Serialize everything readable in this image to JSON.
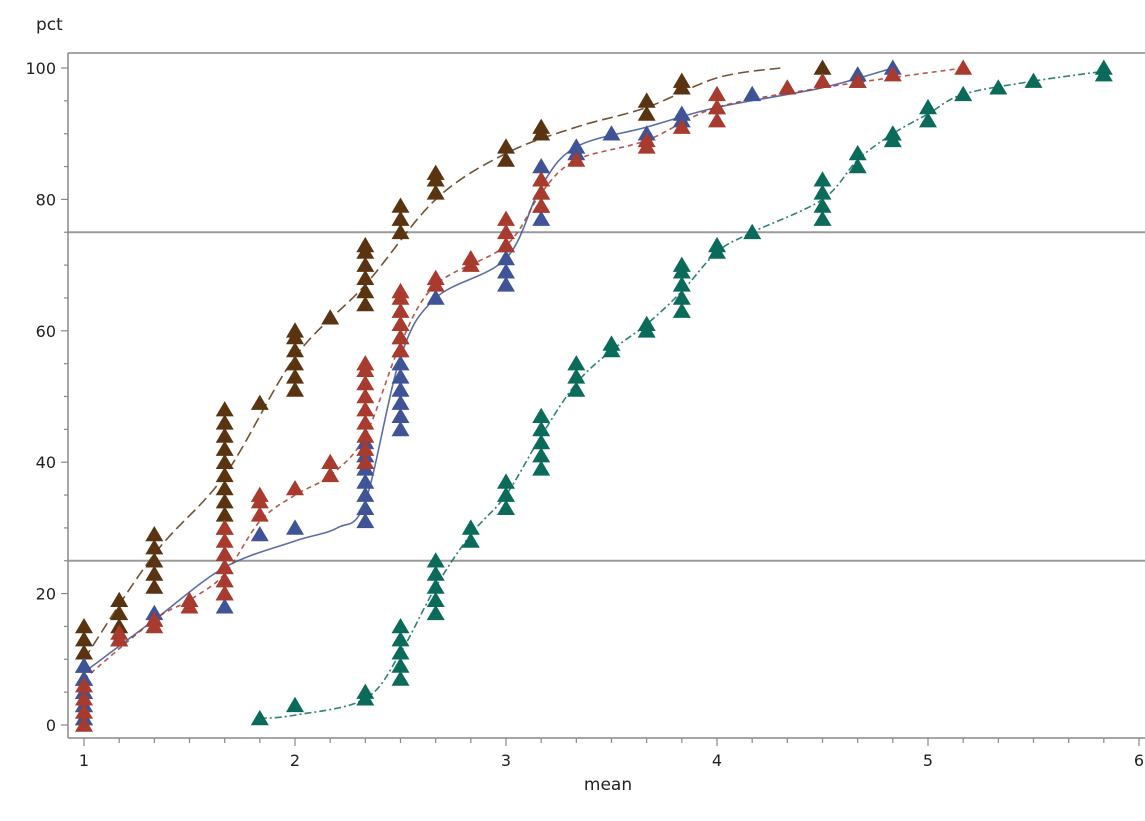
{
  "chart_data": {
    "type": "scatter",
    "title": "",
    "xlabel": "mean",
    "ylabel": "pct",
    "xlim": [
      1,
      6
    ],
    "ylim": [
      0,
      100
    ],
    "xticks": [
      "1",
      "2",
      "3",
      "4",
      "5",
      "6"
    ],
    "yticks": [
      "0",
      "20",
      "40",
      "60",
      "80",
      "100"
    ],
    "reference_lines_y": [
      25,
      75
    ],
    "grid": false,
    "legend": "none",
    "colors": {
      "axis": "#888888",
      "refline": "#9a9a9a",
      "brown": "#5a3410",
      "blue": "#3e5497",
      "red": "#a83a2e",
      "teal": "#0b6b5a"
    },
    "series": [
      {
        "color": "brown",
        "marker": "triangle",
        "line": "long-dash",
        "points": [
          {
            "x": 1,
            "y": [
              1,
              3,
              5,
              7,
              9,
              11,
              13,
              15
            ]
          },
          {
            "x": 1.167,
            "y": [
              15,
              17,
              19
            ]
          },
          {
            "x": 1.333,
            "y": [
              21,
              23,
              25,
              27,
              29
            ]
          },
          {
            "x": 1.667,
            "y": [
              30,
              32,
              34,
              36,
              38,
              40,
              42,
              44,
              46,
              48
            ]
          },
          {
            "x": 1.833,
            "y": [
              49
            ]
          },
          {
            "x": 2,
            "y": [
              51,
              53,
              55,
              57,
              59,
              60
            ]
          },
          {
            "x": 2.167,
            "y": [
              62
            ]
          },
          {
            "x": 2.333,
            "y": [
              64,
              66,
              68,
              70,
              72,
              73
            ]
          },
          {
            "x": 2.5,
            "y": [
              75,
              77,
              79
            ]
          },
          {
            "x": 2.667,
            "y": [
              81,
              83,
              84
            ]
          },
          {
            "x": 3,
            "y": [
              86,
              88
            ]
          },
          {
            "x": 3.167,
            "y": [
              90,
              91
            ]
          },
          {
            "x": 3.667,
            "y": [
              93,
              95
            ]
          },
          {
            "x": 3.833,
            "y": [
              97,
              98
            ]
          },
          {
            "x": 4.5,
            "y": [
              100
            ]
          }
        ],
        "curve": [
          [
            1,
            10
          ],
          [
            1.333,
            26
          ],
          [
            1.667,
            38
          ],
          [
            2,
            56
          ],
          [
            2.333,
            67
          ],
          [
            2.667,
            80
          ],
          [
            3,
            87
          ],
          [
            3.333,
            91
          ],
          [
            3.667,
            94
          ],
          [
            4,
            98.5
          ],
          [
            4.3,
            100
          ]
        ]
      },
      {
        "color": "blue",
        "marker": "triangle",
        "line": "solid",
        "points": [
          {
            "x": 1,
            "y": [
              1,
              3,
              5,
              7,
              9
            ]
          },
          {
            "x": 1.167,
            "y": [
              13
            ]
          },
          {
            "x": 1.333,
            "y": [
              16,
              17
            ]
          },
          {
            "x": 1.667,
            "y": [
              18,
              20,
              22,
              24,
              26
            ]
          },
          {
            "x": 1.833,
            "y": [
              29
            ]
          },
          {
            "x": 2,
            "y": [
              30
            ]
          },
          {
            "x": 2.333,
            "y": [
              31,
              33,
              35,
              37,
              39,
              41,
              43
            ]
          },
          {
            "x": 2.5,
            "y": [
              45,
              47,
              49,
              51,
              53,
              55,
              57,
              59,
              61
            ]
          },
          {
            "x": 2.667,
            "y": [
              65
            ]
          },
          {
            "x": 3,
            "y": [
              67,
              69,
              71,
              73
            ]
          },
          {
            "x": 3.167,
            "y": [
              77,
              79,
              81,
              83,
              85
            ]
          },
          {
            "x": 3.333,
            "y": [
              87,
              88
            ]
          },
          {
            "x": 3.5,
            "y": [
              90
            ]
          },
          {
            "x": 3.667,
            "y": [
              90
            ]
          },
          {
            "x": 3.833,
            "y": [
              92,
              93
            ]
          },
          {
            "x": 4,
            "y": [
              94
            ]
          },
          {
            "x": 4.167,
            "y": [
              96
            ]
          },
          {
            "x": 4.667,
            "y": [
              98,
              99
            ]
          },
          {
            "x": 4.833,
            "y": [
              100
            ]
          }
        ],
        "curve": [
          [
            1,
            8
          ],
          [
            1.333,
            16
          ],
          [
            1.667,
            24
          ],
          [
            2,
            28
          ],
          [
            2.2,
            30
          ],
          [
            2.333,
            34
          ],
          [
            2.5,
            56
          ],
          [
            2.667,
            65
          ],
          [
            3,
            71
          ],
          [
            3.167,
            82
          ],
          [
            3.333,
            88
          ],
          [
            3.667,
            91
          ],
          [
            4,
            94
          ],
          [
            4.5,
            97
          ],
          [
            4.833,
            100
          ]
        ]
      },
      {
        "color": "red",
        "marker": "triangle",
        "line": "short-dash",
        "points": [
          {
            "x": 1,
            "y": [
              0,
              2,
              4,
              6
            ]
          },
          {
            "x": 1.167,
            "y": [
              13,
              14
            ]
          },
          {
            "x": 1.333,
            "y": [
              15,
              16
            ]
          },
          {
            "x": 1.5,
            "y": [
              18,
              19
            ]
          },
          {
            "x": 1.667,
            "y": [
              20,
              22,
              24,
              26,
              28,
              30
            ]
          },
          {
            "x": 1.833,
            "y": [
              32,
              34,
              35
            ]
          },
          {
            "x": 2,
            "y": [
              36
            ]
          },
          {
            "x": 2.167,
            "y": [
              38,
              40
            ]
          },
          {
            "x": 2.333,
            "y": [
              40,
              42,
              44,
              46,
              48,
              50,
              52,
              54,
              55
            ]
          },
          {
            "x": 2.5,
            "y": [
              57,
              59,
              61,
              63,
              65,
              66
            ]
          },
          {
            "x": 2.667,
            "y": [
              67,
              68
            ]
          },
          {
            "x": 2.833,
            "y": [
              70,
              71
            ]
          },
          {
            "x": 3,
            "y": [
              73,
              75,
              77
            ]
          },
          {
            "x": 3.167,
            "y": [
              79,
              81,
              83
            ]
          },
          {
            "x": 3.333,
            "y": [
              86
            ]
          },
          {
            "x": 3.667,
            "y": [
              88,
              89
            ]
          },
          {
            "x": 3.833,
            "y": [
              91
            ]
          },
          {
            "x": 4,
            "y": [
              92,
              94,
              96
            ]
          },
          {
            "x": 4.333,
            "y": [
              97
            ]
          },
          {
            "x": 4.5,
            "y": [
              98
            ]
          },
          {
            "x": 4.667,
            "y": [
              98
            ]
          },
          {
            "x": 4.833,
            "y": [
              99
            ]
          },
          {
            "x": 5.167,
            "y": [
              100
            ]
          }
        ],
        "curve": [
          [
            1,
            7
          ],
          [
            1.333,
            16
          ],
          [
            1.5,
            19
          ],
          [
            1.667,
            23
          ],
          [
            1.833,
            31
          ],
          [
            2,
            35
          ],
          [
            2.167,
            38
          ],
          [
            2.333,
            44
          ],
          [
            2.5,
            58
          ],
          [
            2.667,
            67
          ],
          [
            3,
            73
          ],
          [
            3.167,
            81
          ],
          [
            3.333,
            86
          ],
          [
            3.667,
            89
          ],
          [
            4,
            94
          ],
          [
            4.5,
            97
          ],
          [
            5.167,
            100
          ]
        ]
      },
      {
        "color": "teal",
        "marker": "triangle",
        "line": "dash-dot",
        "points": [
          {
            "x": 1.833,
            "y": [
              1
            ]
          },
          {
            "x": 2,
            "y": [
              3
            ]
          },
          {
            "x": 2.333,
            "y": [
              4,
              5
            ]
          },
          {
            "x": 2.5,
            "y": [
              7,
              9,
              11,
              13,
              15
            ]
          },
          {
            "x": 2.667,
            "y": [
              17,
              19,
              21,
              23,
              25
            ]
          },
          {
            "x": 2.833,
            "y": [
              28,
              30
            ]
          },
          {
            "x": 3,
            "y": [
              33,
              35,
              37
            ]
          },
          {
            "x": 3.167,
            "y": [
              39,
              41,
              43,
              45,
              47
            ]
          },
          {
            "x": 3.333,
            "y": [
              51,
              53,
              55
            ]
          },
          {
            "x": 3.5,
            "y": [
              57,
              58
            ]
          },
          {
            "x": 3.667,
            "y": [
              60,
              61
            ]
          },
          {
            "x": 3.833,
            "y": [
              63,
              65,
              67,
              69,
              70
            ]
          },
          {
            "x": 4,
            "y": [
              72,
              73
            ]
          },
          {
            "x": 4.167,
            "y": [
              75
            ]
          },
          {
            "x": 4.5,
            "y": [
              77,
              79,
              81,
              83
            ]
          },
          {
            "x": 4.667,
            "y": [
              85,
              87
            ]
          },
          {
            "x": 4.833,
            "y": [
              89,
              90
            ]
          },
          {
            "x": 5,
            "y": [
              92,
              94
            ]
          },
          {
            "x": 5.167,
            "y": [
              96
            ]
          },
          {
            "x": 5.333,
            "y": [
              97
            ]
          },
          {
            "x": 5.5,
            "y": [
              98
            ]
          },
          {
            "x": 5.833,
            "y": [
              99,
              100
            ]
          }
        ],
        "curve": [
          [
            1.833,
            1
          ],
          [
            2,
            1.5
          ],
          [
            2.333,
            4
          ],
          [
            2.5,
            11
          ],
          [
            2.667,
            21
          ],
          [
            2.833,
            29
          ],
          [
            3,
            35
          ],
          [
            3.167,
            44
          ],
          [
            3.333,
            52
          ],
          [
            3.5,
            57
          ],
          [
            3.667,
            61
          ],
          [
            3.833,
            66
          ],
          [
            4,
            72
          ],
          [
            4.167,
            75
          ],
          [
            4.5,
            80
          ],
          [
            4.667,
            86
          ],
          [
            4.833,
            90
          ],
          [
            5,
            93
          ],
          [
            5.167,
            96
          ],
          [
            5.5,
            98
          ],
          [
            5.833,
            99.5
          ]
        ]
      }
    ]
  }
}
